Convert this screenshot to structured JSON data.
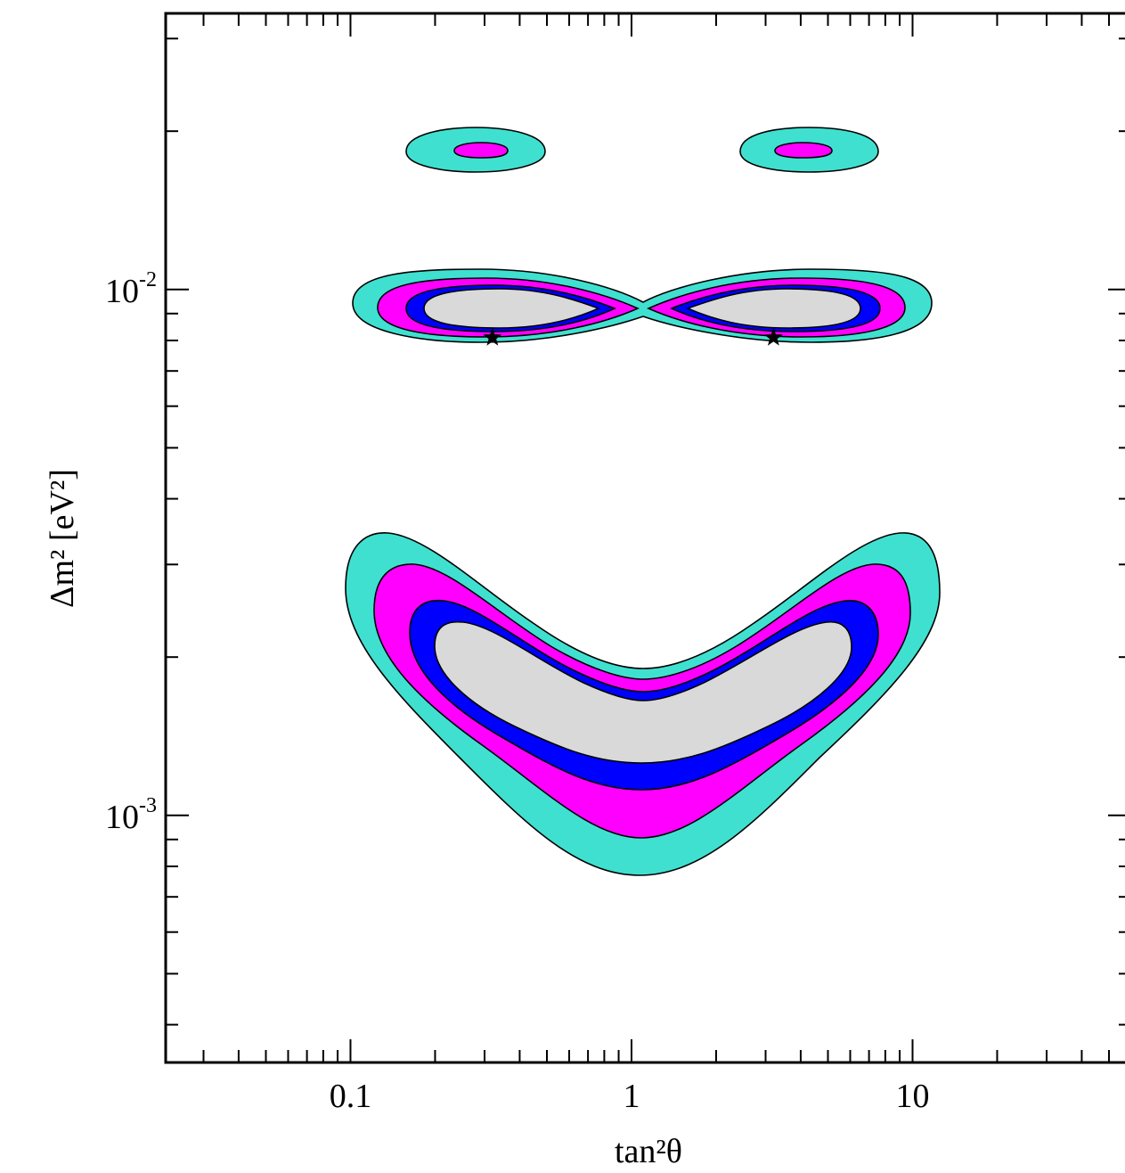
{
  "chart_data": {
    "type": "contour",
    "xlabel": "tan²θ",
    "ylabel": "Δm² [eV²]",
    "x_scale": "log",
    "y_scale": "log",
    "xlim": [
      0.022,
      60
    ],
    "ylim": [
      0.000339,
      0.0335
    ],
    "x_ticks": [
      {
        "value": 0.1,
        "label": "0.1"
      },
      {
        "value": 1,
        "label": "1"
      },
      {
        "value": 10,
        "label": "10"
      }
    ],
    "y_ticks": [
      {
        "value": 0.01,
        "base": "10",
        "exp": "-2"
      },
      {
        "value": 0.001,
        "base": "10",
        "exp": "-3"
      }
    ],
    "grid": false,
    "legend": "none",
    "fill_colors": {
      "level_1": "#d9d9d9",
      "level_2": "#0000ff",
      "level_3": "#ff00ff",
      "level_4": "#40e0d0"
    },
    "best_fit_points": [
      {
        "x": 0.32,
        "y": 0.0081,
        "marker": "star"
      },
      {
        "x": 3.2,
        "y": 0.0081,
        "marker": "star"
      }
    ],
    "regions": [
      {
        "name": "upper islands",
        "center_y": 0.0193,
        "lobes": [
          {
            "center_x": 0.29,
            "levels": [
              "level_3",
              "level_4"
            ]
          },
          {
            "center_x": 3.5,
            "levels": [
              "level_3",
              "level_4"
            ]
          }
        ]
      },
      {
        "name": "middle figure-eight",
        "center_y": 0.0082,
        "x_range": [
          0.115,
          10.5
        ],
        "levels": [
          "level_1",
          "level_2",
          "level_3",
          "level_4"
        ]
      },
      {
        "name": "lower crescent",
        "x_range": [
          0.12,
          10.5
        ],
        "y_range": [
          0.00072,
          0.0031
        ],
        "levels": [
          "level_1",
          "level_2",
          "level_3",
          "level_4"
        ]
      }
    ]
  }
}
